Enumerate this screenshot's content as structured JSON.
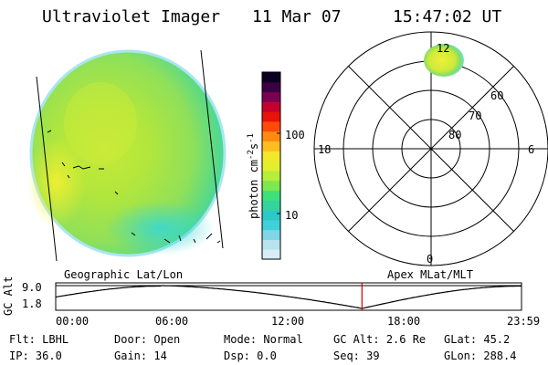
{
  "header": {
    "instrument": "Ultraviolet Imager",
    "date": "11 Mar 07",
    "time": "15:47:02 UT"
  },
  "colorbar": {
    "label": "photon cm",
    "label_exp1": "-2",
    "label_mid": "s",
    "label_exp2": "-1",
    "tick_labels": [
      "100",
      "10"
    ],
    "colors": [
      "#d8eef6",
      "#b8e3ef",
      "#7fd6e6",
      "#3fd0da",
      "#2bc9c8",
      "#34d49c",
      "#3fe07a",
      "#7ee84e",
      "#b6ef3a",
      "#e2ef2e",
      "#f4e62a",
      "#fbbd1f",
      "#ff8a12",
      "#ff4a0a",
      "#e8140a",
      "#c4002c",
      "#7c0052",
      "#3a0042",
      "#0a0020"
    ]
  },
  "polar_plot": {
    "mlt_labels": [
      "12",
      "18",
      "6",
      "0"
    ],
    "mlat_labels": [
      "60",
      "70",
      "80"
    ]
  },
  "timeline": {
    "left_title": "Geographic Lat/Lon",
    "right_title": "Apex MLat/MLT",
    "axis_label": "GC Alt",
    "y_ticks": [
      "9.0",
      "1.8"
    ],
    "x_ticks": [
      "00:00",
      "06:00",
      "12:00",
      "18:00",
      "23:59"
    ],
    "current_time_hours": 15.78
  },
  "footer": {
    "row1": [
      {
        "label": "Flt:",
        "value": "LBHL"
      },
      {
        "label": "Door:",
        "value": "Open"
      },
      {
        "label": "Mode:",
        "value": "Normal"
      },
      {
        "label": "GC Alt:",
        "value": "2.6 Re"
      },
      {
        "label": "GLat:",
        "value": "45.2"
      }
    ],
    "row2": [
      {
        "label": "IP:",
        "value": "36.0"
      },
      {
        "label": "Gain:",
        "value": "14"
      },
      {
        "label": "Dsp:",
        "value": "0.0"
      },
      {
        "label": "Seq:",
        "value": "39"
      },
      {
        "label": "GLon:",
        "value": "288.4"
      }
    ]
  }
}
